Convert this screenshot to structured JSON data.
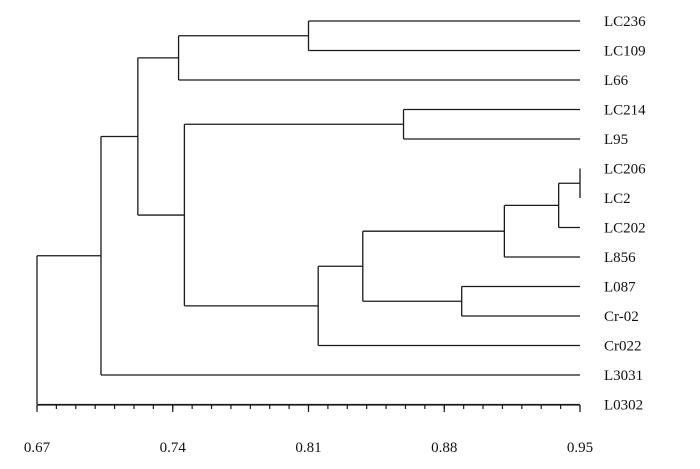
{
  "chart_data": {
    "type": "dendrogram",
    "title": "",
    "xlabel": "",
    "ylabel": "",
    "xlim": [
      0.67,
      0.95
    ],
    "ticks": [
      0.67,
      0.74,
      0.81,
      0.88,
      0.95
    ],
    "tick_labels": [
      "0.67",
      "0.74",
      "0.81",
      "0.88",
      "0.95"
    ],
    "leaves": [
      "LC236",
      "LC109",
      "L66",
      "LC214",
      "L95",
      "LC206",
      "LC2",
      "LC202",
      "L856",
      "L087",
      "Cr-02",
      "Cr022",
      "L3031",
      "L0302"
    ],
    "merges": [
      {
        "id": "m1",
        "children": [
          "LC206",
          "LC2"
        ],
        "height": 0.95
      },
      {
        "id": "m2",
        "children": [
          "m1",
          "LC202"
        ],
        "height": 0.939
      },
      {
        "id": "m3",
        "children": [
          "m2",
          "L856"
        ],
        "height": 0.911
      },
      {
        "id": "m4",
        "children": [
          "L087",
          "Cr-02"
        ],
        "height": 0.889
      },
      {
        "id": "m5",
        "children": [
          "m3",
          "m4"
        ],
        "height": 0.838
      },
      {
        "id": "m6",
        "children": [
          "m5",
          "Cr022"
        ],
        "height": 0.815
      },
      {
        "id": "m7",
        "children": [
          "LC214",
          "L95"
        ],
        "height": 0.859
      },
      {
        "id": "m8",
        "children": [
          "m7",
          "m6"
        ],
        "height": 0.746
      },
      {
        "id": "m9",
        "children": [
          "LC236",
          "LC109"
        ],
        "height": 0.81
      },
      {
        "id": "m10",
        "children": [
          "m9",
          "L66"
        ],
        "height": 0.743
      },
      {
        "id": "m11",
        "children": [
          "m10",
          "m8"
        ],
        "height": 0.722
      },
      {
        "id": "m12",
        "children": [
          "m11",
          "L3031"
        ],
        "height": 0.703
      },
      {
        "id": "m13",
        "children": [
          "m12",
          "L0302"
        ],
        "height": 0.67
      }
    ]
  }
}
